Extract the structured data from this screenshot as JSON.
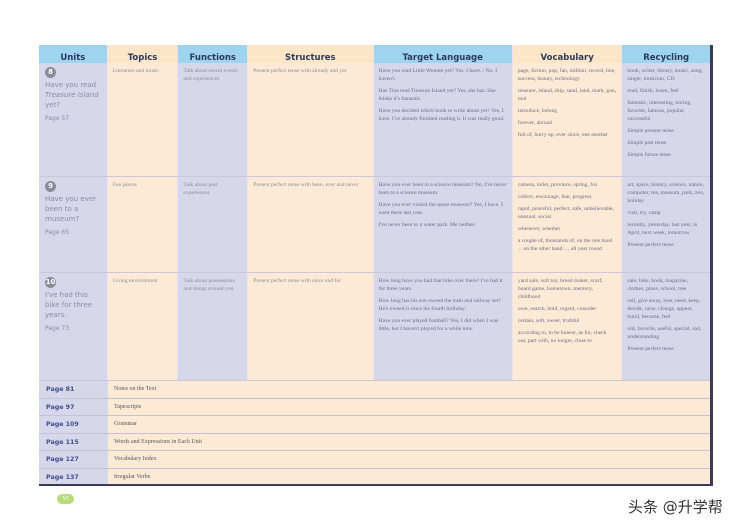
{
  "headers": [
    "Units",
    "Topics",
    "Functions",
    "Structures",
    "Target Language",
    "Vocabulary",
    "Recycling"
  ],
  "units": [
    {
      "num": "8",
      "title": "Have you read ",
      "title_em": "Treasure Island",
      "title_end": " yet?",
      "page": "Page 57",
      "topic": "Literature and music",
      "function": "Talk about recent events and experiences",
      "structure": "Present perfect tense with already and yet",
      "target": [
        "Have you read Little Women yet? Yes, I have. / No, I haven't.",
        "Has Tina read Treasure Island yet? Yes, she has. She thinks it's fantastic.",
        "Have you decided which book to write about yet? Yes, I have. I've already finished reading it. It was really good."
      ],
      "vocab": [
        "page, fiction, pop, fan, million, record, line, success, beauty, technology",
        "treasure, island, ship, sand, land, mark, gun, tool",
        "introduce, belong",
        "forever, abroad",
        "full of, hurry up, ever since, one another"
      ],
      "recycling": [
        "book, writer, library, music, song, singer, musician, CD",
        "read, finish, listen, feel",
        "fantastic, interesting, boring, favorite, famous, popular, successful",
        "Simple present tense",
        "Simple past tense",
        "Simple future tense"
      ]
    },
    {
      "num": "9",
      "title": "Have you ever been to a museum?",
      "page": "Page 65",
      "topic": "Fun places",
      "function": "Talk about past experiences",
      "structure": "Present perfect tense with been, ever and never",
      "target": [
        "Have you ever been to a science museum? No, I've never been to a science museum.",
        "Have you ever visited the space museum? Yes, I have. I went there last year.",
        "I've never been to a water park. Me neither."
      ],
      "vocab": [
        "camera, toilet, province, spring, fox",
        "collect, encourage, fear, progress",
        "rapid, peaceful, perfect, safe, unbelievable, unusual, social",
        "whenever, whether",
        "a couple of, thousands of, on the one hand ... on the other hand ..., all year round"
      ],
      "recycling": [
        "art, space, history, science, nature, computer, tea, museum, park, zoo, holiday",
        "visit, try, camp",
        "recently, yesterday, last year, in April, next week, tomorrow",
        "Present perfect tense"
      ]
    },
    {
      "num": "10",
      "title": "I've had this bike for three years.",
      "page": "Page 73",
      "topic": "Living environment",
      "function": "Talk about possessions and things around you",
      "structure": "Present perfect tense with since and for",
      "target": [
        "How long have you had that bike over there? I've had it for three years.",
        "How long has his son owned the train and railway set? He's owned it since his fourth birthday.",
        "Have you ever played football? Yes, I did when I was little, but I haven't played for a while now."
      ],
      "vocab": [
        "yard sale, soft toy, bread maker, scarf, board game, hometown, memory, childhood",
        "own, search, hold, regard, consider",
        "certain, soft, sweet, truthful",
        "according to, to be honest, as for, check out, part with, no longer, close to"
      ],
      "recycling": [
        "sale, bike, book, magazine, clothes, place, school, tree",
        "sell, give away, lose, need, keep, decide, raise, change, appear, build, become, feel",
        "old, favorite, useful, special, sad, understanding",
        "Present perfect tense"
      ]
    }
  ],
  "appendix": [
    {
      "page": "Page 81",
      "title": "Notes on the Text"
    },
    {
      "page": "Page 97",
      "title": "Tapescripts"
    },
    {
      "page": "Page 109",
      "title": "Grammar"
    },
    {
      "page": "Page 115",
      "title": "Words and Expressions in Each Unit"
    },
    {
      "page": "Page 127",
      "title": "Vocabulary Index"
    },
    {
      "page": "Page 137",
      "title": "Irregular Verbs"
    }
  ],
  "page_number": "VI",
  "watermark": "头条 @升学帮"
}
